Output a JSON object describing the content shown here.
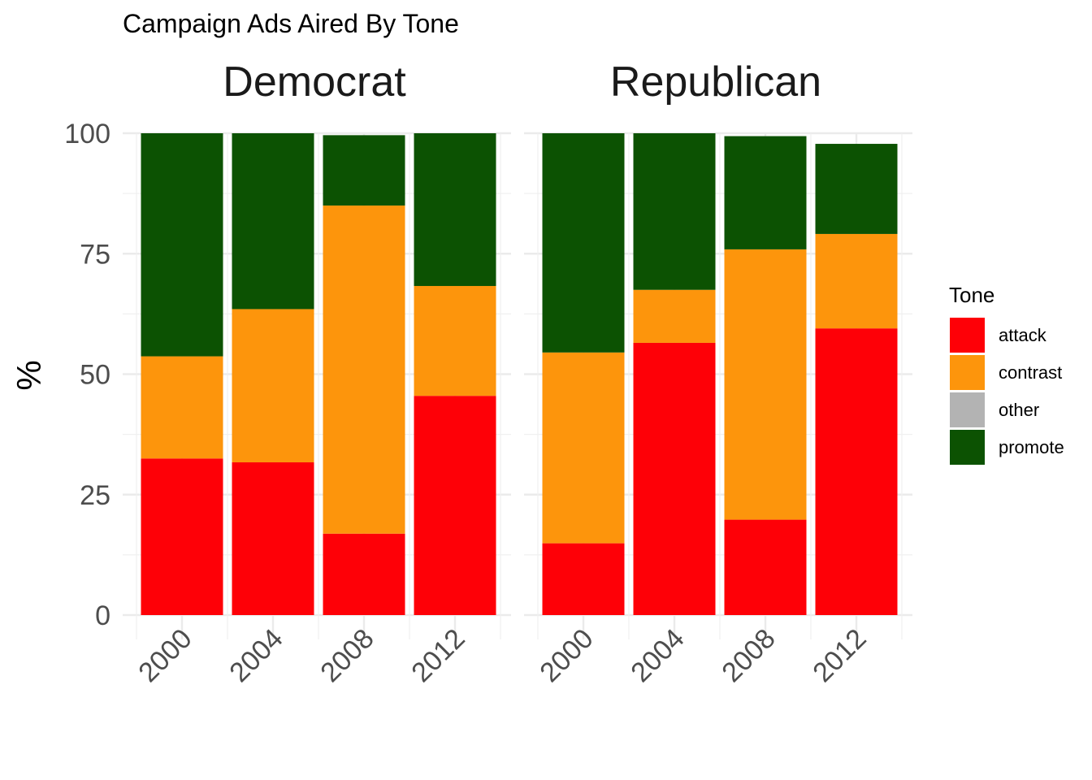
{
  "chart_data": {
    "type": "bar",
    "stacked": true,
    "title": "Campaign Ads Aired By Tone",
    "ylabel": "%",
    "xlabel": "",
    "ylim": [
      0,
      100
    ],
    "yticks": [
      "0",
      "25",
      "50",
      "75",
      "100"
    ],
    "grid": true,
    "legend": {
      "title": "Tone",
      "placement": "right",
      "entries": [
        {
          "name": "attack",
          "color": "#fe0007"
        },
        {
          "name": "contrast",
          "color": "#fd950c"
        },
        {
          "name": "other",
          "color": "#b3b3b3"
        },
        {
          "name": "promote",
          "color": "#0c5202"
        }
      ]
    },
    "facets": [
      {
        "name": "Democrat",
        "categories": [
          "2000",
          "2004",
          "2008",
          "2012"
        ],
        "series": [
          {
            "name": "attack",
            "values": [
              32.5,
              31.7,
              16.9,
              45.5
            ]
          },
          {
            "name": "contrast",
            "values": [
              21.2,
              31.8,
              68.1,
              22.8
            ]
          },
          {
            "name": "other",
            "values": [
              0,
              0,
              0,
              0
            ]
          },
          {
            "name": "promote",
            "values": [
              46.3,
              36.5,
              14.6,
              31.7
            ]
          }
        ]
      },
      {
        "name": "Republican",
        "categories": [
          "2000",
          "2004",
          "2008",
          "2012"
        ],
        "series": [
          {
            "name": "attack",
            "values": [
              14.9,
              56.5,
              19.8,
              59.5
            ]
          },
          {
            "name": "contrast",
            "values": [
              39.6,
              11.0,
              56.1,
              19.6
            ]
          },
          {
            "name": "other",
            "values": [
              0,
              0,
              0,
              0
            ]
          },
          {
            "name": "promote",
            "values": [
              45.5,
              32.5,
              23.5,
              18.7
            ]
          }
        ]
      }
    ]
  }
}
